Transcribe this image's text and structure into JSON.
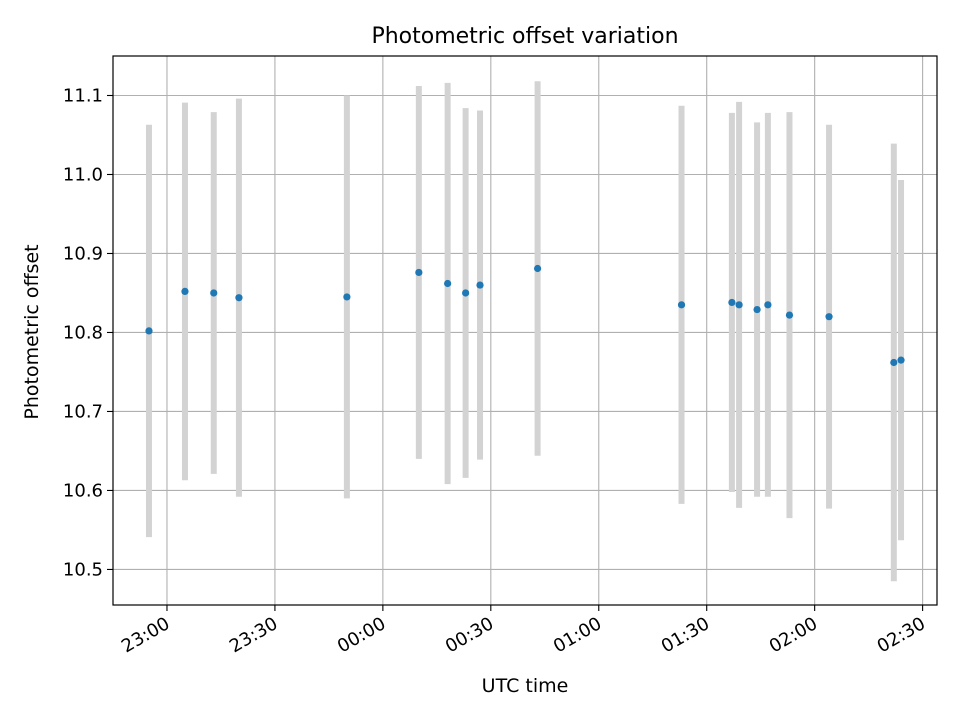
{
  "chart_data": {
    "type": "scatter",
    "title": "Photometric offset variation",
    "xlabel": "UTC time",
    "ylabel": "Photometric offset",
    "x_ticks": [
      "23:00",
      "23:30",
      "00:00",
      "00:30",
      "01:00",
      "01:30",
      "02:00",
      "02:30"
    ],
    "x_tick_minutes": [
      0,
      30,
      60,
      90,
      120,
      150,
      180,
      210
    ],
    "xlim_minutes": [
      -15,
      214
    ],
    "y_ticks": [
      "10.5",
      "10.6",
      "10.7",
      "10.8",
      "10.9",
      "11.0",
      "11.1"
    ],
    "ylim": [
      10.455,
      11.15
    ],
    "grid": true,
    "point_color": "#1f77b4",
    "errorbar_color": "#d3d3d3",
    "points": [
      {
        "time": "22:55",
        "y": 10.802,
        "err": 0.261
      },
      {
        "time": "23:05",
        "y": 10.852,
        "err": 0.239
      },
      {
        "time": "23:13",
        "y": 10.85,
        "err": 0.229
      },
      {
        "time": "23:20",
        "y": 10.844,
        "err": 0.252
      },
      {
        "time": "23:50",
        "y": 10.845,
        "err": 0.255
      },
      {
        "time": "00:10",
        "y": 10.876,
        "err": 0.236
      },
      {
        "time": "00:18",
        "y": 10.862,
        "err": 0.254
      },
      {
        "time": "00:23",
        "y": 10.85,
        "err": 0.234
      },
      {
        "time": "00:27",
        "y": 10.86,
        "err": 0.221
      },
      {
        "time": "00:43",
        "y": 10.881,
        "err": 0.237
      },
      {
        "time": "01:23",
        "y": 10.835,
        "err": 0.252
      },
      {
        "time": "01:37",
        "y": 10.838,
        "err": 0.24
      },
      {
        "time": "01:39",
        "y": 10.835,
        "err": 0.257
      },
      {
        "time": "01:44",
        "y": 10.829,
        "err": 0.237
      },
      {
        "time": "01:47",
        "y": 10.835,
        "err": 0.243
      },
      {
        "time": "01:53",
        "y": 10.822,
        "err": 0.257
      },
      {
        "time": "02:04",
        "y": 10.82,
        "err": 0.243
      },
      {
        "time": "02:22",
        "y": 10.762,
        "err": 0.277
      },
      {
        "time": "02:24",
        "y": 10.765,
        "err": 0.228
      }
    ]
  }
}
